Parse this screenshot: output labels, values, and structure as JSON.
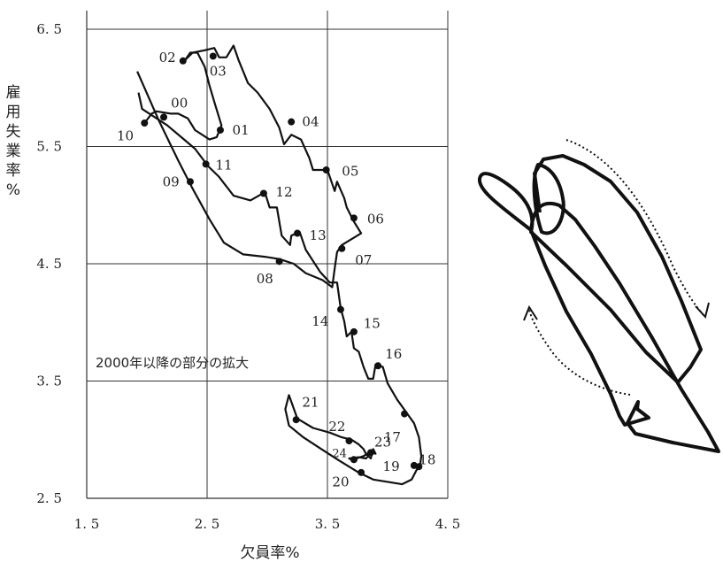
{
  "chart_data": {
    "type": "line",
    "xlabel": "欠員率%",
    "ylabel": "雇用失業率%",
    "xlim": [
      1.5,
      4.5
    ],
    "ylim": [
      2.5,
      6.5
    ],
    "x_ticks": [
      "1.5",
      "2.5",
      "3.5",
      "4.5"
    ],
    "y_ticks": [
      "2.5",
      "3.5",
      "4.5",
      "5.5",
      "6.5"
    ],
    "grid": true,
    "annotation": "2000年以降の部分の拡大",
    "path": [
      [
        1.93,
        5.96
      ],
      [
        1.96,
        5.82
      ],
      [
        2.17,
        5.68
      ],
      [
        2.32,
        5.55
      ],
      [
        2.4,
        5.48
      ],
      [
        2.51,
        5.33
      ],
      [
        2.6,
        5.24
      ],
      [
        2.72,
        5.08
      ],
      [
        2.86,
        5.04
      ],
      [
        2.98,
        5.11
      ],
      [
        3.02,
        4.98
      ],
      [
        3.08,
        4.98
      ],
      [
        3.12,
        4.74
      ],
      [
        3.19,
        4.66
      ],
      [
        3.2,
        4.74
      ],
      [
        3.27,
        4.77
      ],
      [
        3.32,
        4.62
      ],
      [
        3.44,
        4.43
      ],
      [
        3.52,
        4.34
      ],
      [
        3.58,
        4.34
      ],
      [
        3.61,
        4.12
      ],
      [
        3.64,
        4.01
      ],
      [
        3.66,
        3.88
      ],
      [
        3.7,
        3.92
      ],
      [
        3.72,
        3.78
      ],
      [
        3.76,
        3.75
      ],
      [
        3.8,
        3.62
      ],
      [
        3.84,
        3.52
      ],
      [
        3.88,
        3.52
      ],
      [
        3.9,
        3.64
      ],
      [
        3.96,
        3.62
      ],
      [
        4.0,
        3.48
      ],
      [
        4.08,
        3.34
      ],
      [
        4.15,
        3.24
      ],
      [
        4.22,
        3.14
      ],
      [
        4.26,
        3.02
      ],
      [
        4.28,
        2.86
      ],
      [
        4.27,
        2.78
      ],
      [
        4.24,
        2.74
      ],
      [
        4.2,
        2.66
      ],
      [
        4.12,
        2.62
      ],
      [
        4.0,
        2.64
      ],
      [
        3.88,
        2.66
      ],
      [
        3.76,
        2.72
      ],
      [
        3.6,
        2.82
      ],
      [
        3.45,
        2.92
      ],
      [
        3.3,
        3.02
      ],
      [
        3.18,
        3.12
      ],
      [
        3.15,
        3.26
      ],
      [
        3.18,
        3.38
      ],
      [
        3.25,
        3.18
      ],
      [
        3.38,
        3.1
      ],
      [
        3.52,
        3.06
      ],
      [
        3.62,
        3.02
      ],
      [
        3.7,
        3.0
      ],
      [
        3.76,
        2.96
      ],
      [
        3.8,
        2.92
      ],
      [
        3.82,
        2.88
      ],
      [
        3.86,
        2.84
      ],
      [
        3.88,
        2.92
      ],
      [
        3.9,
        2.88
      ],
      [
        3.86,
        2.9
      ],
      [
        3.8,
        2.86
      ],
      [
        3.74,
        2.84
      ],
      [
        3.72,
        2.82
      ],
      [
        3.68,
        2.84
      ],
      [
        3.76,
        2.85
      ],
      [
        3.82,
        2.84
      ],
      [
        3.84,
        2.86
      ],
      [
        3.86,
        2.84
      ]
    ],
    "path_upper": [
      [
        1.92,
        6.14
      ],
      [
        2.1,
        5.72
      ],
      [
        2.26,
        5.38
      ],
      [
        2.38,
        5.14
      ],
      [
        2.52,
        4.88
      ],
      [
        2.64,
        4.68
      ],
      [
        2.8,
        4.58
      ],
      [
        2.98,
        4.56
      ],
      [
        3.1,
        4.54
      ],
      [
        3.22,
        4.5
      ],
      [
        3.32,
        4.42
      ],
      [
        3.46,
        4.36
      ],
      [
        3.54,
        4.3
      ],
      [
        3.56,
        4.46
      ],
      [
        3.58,
        4.6
      ],
      [
        3.62,
        4.66
      ],
      [
        3.78,
        4.76
      ],
      [
        3.72,
        4.86
      ],
      [
        3.66,
        4.98
      ],
      [
        3.64,
        5.06
      ],
      [
        3.58,
        5.2
      ],
      [
        3.56,
        5.12
      ],
      [
        3.5,
        5.3
      ],
      [
        3.44,
        5.3
      ],
      [
        3.38,
        5.3
      ],
      [
        3.35,
        5.4
      ],
      [
        3.28,
        5.56
      ],
      [
        3.2,
        5.6
      ],
      [
        3.14,
        5.52
      ],
      [
        3.1,
        5.66
      ],
      [
        3.02,
        5.82
      ],
      [
        2.92,
        5.96
      ],
      [
        2.84,
        6.04
      ],
      [
        2.76,
        6.24
      ],
      [
        2.72,
        6.36
      ],
      [
        2.66,
        6.26
      ],
      [
        2.6,
        6.26
      ],
      [
        2.56,
        6.34
      ],
      [
        2.48,
        6.32
      ],
      [
        2.38,
        6.3
      ],
      [
        2.32,
        6.24
      ],
      [
        2.36,
        6.3
      ],
      [
        2.42,
        6.3
      ],
      [
        2.48,
        6.18
      ],
      [
        2.52,
        6.02
      ],
      [
        2.56,
        5.88
      ],
      [
        2.62,
        5.68
      ],
      [
        2.58,
        5.58
      ],
      [
        2.52,
        5.56
      ],
      [
        2.4,
        5.64
      ],
      [
        2.34,
        5.74
      ],
      [
        2.26,
        5.78
      ],
      [
        2.2,
        5.78
      ],
      [
        2.08,
        5.8
      ],
      [
        2.04,
        5.78
      ],
      [
        1.98,
        5.7
      ]
    ],
    "points": [
      {
        "label": "00",
        "x": 2.14,
        "y": 5.75,
        "lx": 2.27,
        "ly": 5.87
      },
      {
        "label": "01",
        "x": 2.61,
        "y": 5.64,
        "lx": 2.78,
        "ly": 5.64
      },
      {
        "label": "02",
        "x": 2.3,
        "y": 6.23,
        "lx": 2.17,
        "ly": 6.26
      },
      {
        "label": "03",
        "x": 2.55,
        "y": 6.27,
        "lx": 2.59,
        "ly": 6.14
      },
      {
        "label": "04",
        "x": 3.2,
        "y": 5.71,
        "lx": 3.36,
        "ly": 5.71
      },
      {
        "label": "05",
        "x": 3.49,
        "y": 5.3,
        "lx": 3.69,
        "ly": 5.29
      },
      {
        "label": "06",
        "x": 3.72,
        "y": 4.89,
        "lx": 3.9,
        "ly": 4.88
      },
      {
        "label": "07",
        "x": 3.62,
        "y": 4.63,
        "lx": 3.8,
        "ly": 4.53
      },
      {
        "label": "08",
        "x": 3.1,
        "y": 4.52,
        "lx": 2.98,
        "ly": 4.37
      },
      {
        "label": "09",
        "x": 2.36,
        "y": 5.2,
        "lx": 2.2,
        "ly": 5.2
      },
      {
        "label": "10",
        "x": 1.98,
        "y": 5.7,
        "lx": 1.82,
        "ly": 5.59
      },
      {
        "label": "11",
        "x": 2.49,
        "y": 5.35,
        "lx": 2.64,
        "ly": 5.34
      },
      {
        "label": "12",
        "x": 2.97,
        "y": 5.1,
        "lx": 3.14,
        "ly": 5.11
      },
      {
        "label": "13",
        "x": 3.25,
        "y": 4.76,
        "lx": 3.42,
        "ly": 4.74
      },
      {
        "label": "14",
        "x": 3.61,
        "y": 4.11,
        "lx": 3.44,
        "ly": 4.01
      },
      {
        "label": "15",
        "x": 3.72,
        "y": 3.92,
        "lx": 3.87,
        "ly": 3.99
      },
      {
        "label": "16",
        "x": 3.92,
        "y": 3.63,
        "lx": 4.05,
        "ly": 3.73
      },
      {
        "label": "17",
        "x": 4.14,
        "y": 3.22,
        "lx": 4.04,
        "ly": 3.02
      },
      {
        "label": "18",
        "x": 4.26,
        "y": 2.77,
        "lx": 4.33,
        "ly": 2.83
      },
      {
        "label": "19",
        "x": 4.22,
        "y": 2.78,
        "lx": 4.03,
        "ly": 2.77
      },
      {
        "label": "20",
        "x": 3.78,
        "y": 2.72,
        "lx": 3.61,
        "ly": 2.64
      },
      {
        "label": "21",
        "x": 3.24,
        "y": 3.17,
        "lx": 3.36,
        "ly": 3.32
      },
      {
        "label": "22",
        "x": 3.68,
        "y": 2.99,
        "lx": 3.58,
        "ly": 3.11
      },
      {
        "label": "23",
        "x": 3.86,
        "y": 2.89,
        "lx": 3.96,
        "ly": 2.98
      },
      {
        "label": "24",
        "x": 3.72,
        "y": 2.83,
        "lx": 3.6,
        "ly": 2.89,
        "small": true
      }
    ]
  },
  "inset": {
    "description_free": true,
    "loop_color": "#111111",
    "arrow_color": "#111111"
  }
}
